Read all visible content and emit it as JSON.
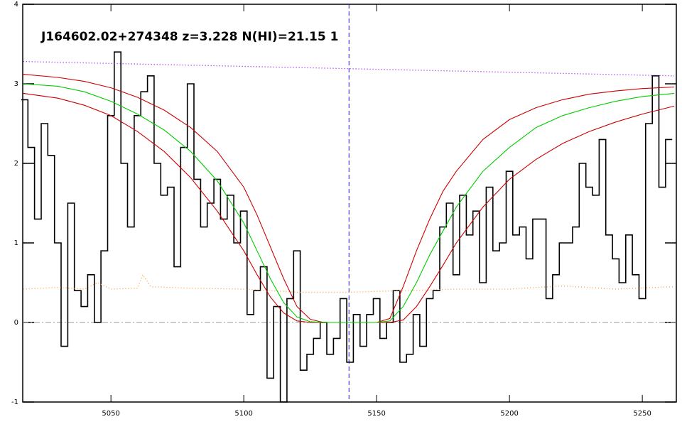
{
  "chart_data": {
    "type": "line",
    "title": "J164602.02+274348 z=3.228 N(HI)=21.15 1",
    "xlim": [
      5016.8,
      5262.8
    ],
    "ylim": [
      -1,
      4
    ],
    "xticks": [
      5050,
      5100,
      5150,
      5200,
      5250
    ],
    "yticks": [
      -1,
      0,
      1,
      2,
      3,
      4
    ],
    "hline": 0,
    "hline_color": "#999999",
    "vline": 5139.6,
    "vline_color": "#2222cc",
    "series": [
      {
        "color": "#000000",
        "style": "step",
        "x": [
          5017.5,
          5020,
          5022.5,
          5025,
          5027.5,
          5030,
          5032.5,
          5035,
          5037.5,
          5040,
          5042.5,
          5045,
          5047.5,
          5050,
          5052.5,
          5055,
          5057.5,
          5060,
          5062.5,
          5065,
          5067.5,
          5070,
          5072.5,
          5075,
          5077.5,
          5080,
          5082.5,
          5085,
          5087.5,
          5090,
          5092.5,
          5095,
          5097.5,
          5100,
          5102.5,
          5105,
          5107.5,
          5110,
          5112.5,
          5115,
          5117.5,
          5120,
          5122.5,
          5125,
          5127.5,
          5130,
          5132.5,
          5135,
          5137.5,
          5140,
          5142.5,
          5145,
          5147.5,
          5150,
          5152.5,
          5155,
          5157.5,
          5160,
          5162.5,
          5165,
          5167.5,
          5170,
          5172.5,
          5175,
          5177.5,
          5180,
          5182.5,
          5185,
          5187.5,
          5190,
          5192.5,
          5195,
          5197.5,
          5200,
          5202.5,
          5205,
          5207.5,
          5210,
          5212.5,
          5215,
          5217.5,
          5220,
          5222.5,
          5225,
          5227.5,
          5230,
          5232.5,
          5235,
          5237.5,
          5240,
          5242.5,
          5245,
          5247.5,
          5250,
          5252.5,
          5255,
          5257.5,
          5260
        ],
        "values": [
          2.8,
          2.2,
          1.3,
          2.5,
          2.1,
          1.0,
          -0.3,
          1.5,
          0.4,
          0.2,
          0.6,
          0.0,
          0.9,
          2.6,
          3.4,
          2.0,
          1.2,
          2.6,
          2.9,
          3.1,
          2.0,
          1.6,
          1.7,
          0.7,
          2.2,
          3.0,
          1.8,
          1.2,
          1.5,
          1.8,
          1.3,
          1.6,
          1.0,
          1.4,
          0.1,
          0.4,
          0.7,
          -0.7,
          0.2,
          -1.0,
          0.3,
          0.9,
          -0.6,
          -0.4,
          -0.2,
          0.0,
          -0.4,
          -0.2,
          0.3,
          -0.5,
          0.1,
          -0.3,
          0.1,
          0.3,
          -0.2,
          0.0,
          0.4,
          -0.5,
          -0.4,
          0.1,
          -0.3,
          0.3,
          0.4,
          1.2,
          1.5,
          0.6,
          1.6,
          1.1,
          1.4,
          0.5,
          1.7,
          0.9,
          1.0,
          1.9,
          1.1,
          1.2,
          0.8,
          1.3,
          1.3,
          0.3,
          0.6,
          1.0,
          1.0,
          1.2,
          2.0,
          1.7,
          1.6,
          2.3,
          1.1,
          0.8,
          0.5,
          1.1,
          0.6,
          0.3,
          2.5,
          3.1,
          1.7,
          2.3
        ]
      },
      {
        "color": "#ff9933",
        "style": "dotted",
        "x": [
          5017,
          5030,
          5040,
          5045,
          5050,
          5060,
          5062,
          5065,
          5080,
          5100,
          5120,
          5140,
          5160,
          5180,
          5200,
          5220,
          5240,
          5262
        ],
        "values": [
          0.42,
          0.44,
          0.42,
          0.5,
          0.42,
          0.43,
          0.6,
          0.45,
          0.43,
          0.42,
          0.38,
          0.38,
          0.4,
          0.42,
          0.42,
          0.46,
          0.42,
          0.45
        ]
      },
      {
        "color": "#9900ff",
        "style": "dotted",
        "x": [
          5017,
          5262
        ],
        "values": [
          3.28,
          3.1
        ]
      },
      {
        "color": "#cc0000",
        "style": "solid",
        "x": [
          5017,
          5030,
          5040,
          5050,
          5060,
          5070,
          5080,
          5090,
          5100,
          5105,
          5110,
          5115,
          5120,
          5125,
          5130,
          5140,
          5150,
          5155,
          5160,
          5165,
          5170,
          5175,
          5180,
          5190,
          5200,
          5210,
          5220,
          5230,
          5240,
          5250,
          5262
        ],
        "values": [
          3.12,
          3.08,
          3.03,
          2.95,
          2.83,
          2.67,
          2.45,
          2.15,
          1.7,
          1.35,
          0.95,
          0.55,
          0.2,
          0.04,
          0,
          0,
          0,
          0.05,
          0.45,
          0.9,
          1.3,
          1.65,
          1.9,
          2.3,
          2.55,
          2.7,
          2.8,
          2.87,
          2.91,
          2.94,
          2.96
        ]
      },
      {
        "color": "#cc0000",
        "style": "solid",
        "x": [
          5017,
          5030,
          5040,
          5050,
          5060,
          5070,
          5080,
          5090,
          5100,
          5105,
          5110,
          5115,
          5120,
          5125,
          5130,
          5140,
          5150,
          5155,
          5160,
          5165,
          5170,
          5175,
          5180,
          5190,
          5200,
          5210,
          5220,
          5230,
          5240,
          5250,
          5262
        ],
        "values": [
          2.88,
          2.82,
          2.73,
          2.6,
          2.4,
          2.15,
          1.82,
          1.4,
          0.9,
          0.6,
          0.32,
          0.12,
          0.02,
          0,
          0,
          0,
          0,
          0,
          0.03,
          0.2,
          0.45,
          0.72,
          1.0,
          1.45,
          1.8,
          2.05,
          2.25,
          2.4,
          2.52,
          2.62,
          2.72
        ]
      },
      {
        "color": "#00cc00",
        "style": "solid",
        "x": [
          5017,
          5030,
          5040,
          5050,
          5060,
          5070,
          5080,
          5090,
          5100,
          5105,
          5110,
          5115,
          5120,
          5125,
          5130,
          5140,
          5150,
          5155,
          5160,
          5165,
          5170,
          5175,
          5180,
          5190,
          5200,
          5210,
          5220,
          5230,
          5240,
          5250,
          5262
        ],
        "values": [
          3.0,
          2.97,
          2.9,
          2.78,
          2.62,
          2.42,
          2.15,
          1.78,
          1.25,
          0.9,
          0.55,
          0.25,
          0.07,
          0.01,
          0,
          0,
          0,
          0.02,
          0.2,
          0.5,
          0.85,
          1.15,
          1.45,
          1.9,
          2.2,
          2.45,
          2.6,
          2.7,
          2.78,
          2.84,
          2.88
        ]
      }
    ]
  }
}
